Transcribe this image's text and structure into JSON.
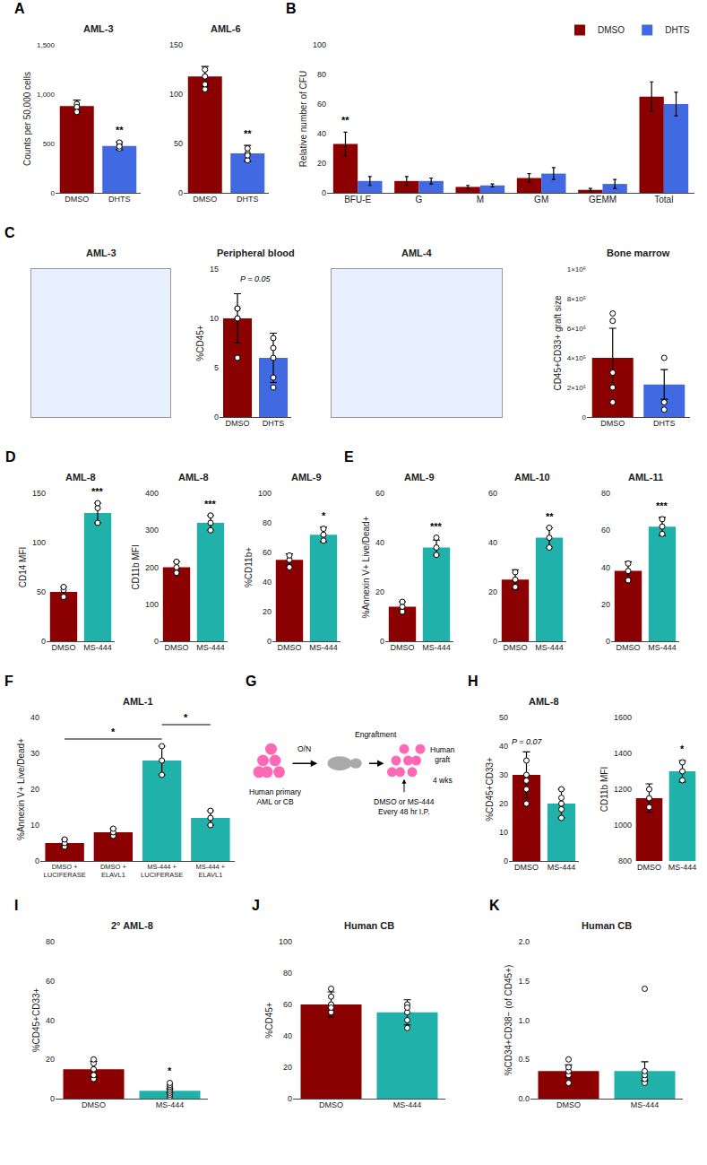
{
  "chart_data": [
    {
      "type": "bar",
      "panel": "A",
      "title": "AML-3",
      "ylabel": "Counts per 50,000 cells",
      "categories": [
        "DMSO",
        "DHTS"
      ],
      "values": [
        880,
        475
      ],
      "errors": [
        60,
        40
      ],
      "colors": [
        "#8B0000",
        "#4169E1"
      ],
      "dots": [
        [
          850,
          900,
          870,
          820
        ],
        [
          450,
          490,
          510,
          470
        ]
      ],
      "dot_color": "white",
      "dot_edge_color": "black",
      "ylim": [
        0,
        1500
      ],
      "yticks": [
        0,
        500,
        {
          "value": 1000,
          "label": "1,000"
        },
        {
          "value": 1500,
          "label": "1,500"
        }
      ],
      "grid": false,
      "annotations": [
        {
          "text": "**",
          "category": "DHTS"
        }
      ]
    },
    {
      "type": "bar",
      "title": "AML-6",
      "categories": [
        "DMSO",
        "DHTS"
      ],
      "values": [
        118,
        40
      ],
      "errors": [
        10,
        8
      ],
      "colors": [
        "#8B0000",
        "#4169E1"
      ],
      "dots": [
        [
          105,
          118,
          125,
          110
        ],
        [
          33,
          40,
          45,
          38
        ]
      ],
      "dot_color": "white",
      "dot_edge_color": "black",
      "ylim": [
        0,
        150
      ],
      "yticks": [
        0,
        50,
        100,
        150
      ],
      "grid": false,
      "annotations": [
        {
          "text": "**",
          "category": "DHTS"
        }
      ]
    },
    {
      "type": "bar",
      "panel": "B",
      "ylabel": "Relative number of CFU",
      "categories": [
        "BFU-E",
        "G",
        "M",
        "GM",
        "GEMM",
        "Total"
      ],
      "series": [
        {
          "name": "DMSO",
          "color": "#8B0000",
          "values": [
            33,
            8,
            4,
            10,
            2,
            65
          ],
          "errors": [
            8,
            3,
            1,
            3,
            1,
            10
          ]
        },
        {
          "name": "DHTS",
          "color": "#4169E1",
          "values": [
            8,
            8,
            5,
            13,
            6,
            60
          ],
          "errors": [
            3,
            2,
            1,
            4,
            3,
            8
          ]
        }
      ],
      "ylim": [
        0,
        100
      ],
      "yticks": [
        0,
        20,
        40,
        60,
        80,
        100
      ],
      "legend": "upper right",
      "grid": false,
      "annotations": [
        {
          "text": "**",
          "category": "BFU-E",
          "series": "DMSO"
        }
      ]
    },
    {
      "type": "blank",
      "panel": "C",
      "title": "AML-3",
      "color": "#E8F0FF",
      "tick_labels": false,
      "grid": false
    },
    {
      "type": "bar",
      "title": "Peripheral blood",
      "ylabel": "%CD45+",
      "categories": [
        "DMSO",
        "DHTS"
      ],
      "values": [
        10.0,
        6.0
      ],
      "errors": [
        2.5,
        2.5
      ],
      "colors": [
        "#8B0000",
        "#4169E1"
      ],
      "dots": [
        [
          10,
          11,
          6,
          10,
          11
        ],
        [
          3,
          4,
          7,
          8,
          6
        ]
      ],
      "dot_color": "white",
      "dot_edge_color": "black",
      "ylim": [
        0,
        15
      ],
      "yticks": [
        0,
        5,
        10,
        15
      ],
      "grid": false,
      "annotations": [
        {
          "text": "P = 0.05"
        }
      ]
    },
    {
      "type": "blank",
      "title": "AML-4",
      "color": "#E8F0FF",
      "tick_labels": false,
      "grid": false
    },
    {
      "type": "bar",
      "title": "Bone marrow",
      "ylabel": "CD45+CD33+ graft size",
      "categories": [
        "DMSO",
        "DHTS"
      ],
      "values": [
        400000,
        220000
      ],
      "errors": [
        200000,
        100000
      ],
      "colors": [
        "#8B0000",
        "#4169E1"
      ],
      "dots": [
        [
          700000,
          650000,
          300000,
          200000,
          100000
        ],
        [
          400000,
          100000,
          100000,
          50000
        ]
      ],
      "dot_color": "white",
      "dot_edge_color": "black",
      "ylim": [
        0,
        1000000
      ],
      "yticks": [
        0,
        {
          "value": 200000,
          "label": "2×10⁵"
        },
        {
          "value": 400000,
          "label": "4×10⁵"
        },
        {
          "value": 600000,
          "label": "6×10⁵"
        },
        {
          "value": 800000,
          "label": "8×10⁵"
        },
        {
          "value": 1000000,
          "label": "1×10⁶"
        }
      ],
      "grid": false
    },
    {
      "type": "bar",
      "panel": "D",
      "title": "AML-8",
      "ylabel": "CD14 MFI",
      "categories": [
        "DMSO",
        "MS-444"
      ],
      "values": [
        50,
        130
      ],
      "errors": [
        5,
        10
      ],
      "colors": [
        "#8B0000",
        "#20B2AA"
      ],
      "dots": [
        [
          45,
          52,
          55
        ],
        [
          120,
          135,
          140
        ]
      ],
      "dot_color": "white",
      "dot_edge_color": "black",
      "ylim": [
        0,
        150
      ],
      "yticks": [
        0,
        50,
        100,
        150
      ],
      "grid": false,
      "annotations": [
        {
          "text": "***",
          "category": "MS-444"
        }
      ]
    },
    {
      "type": "bar",
      "title": "AML-8",
      "ylabel": "CD11b MFI",
      "categories": [
        "DMSO",
        "MS-444"
      ],
      "values": [
        200,
        320
      ],
      "errors": [
        15,
        20
      ],
      "colors": [
        "#8B0000",
        "#20B2AA"
      ],
      "dots": [
        [
          185,
          200,
          215
        ],
        [
          300,
          320,
          340
        ]
      ],
      "dot_color": "white",
      "dot_edge_color": "black",
      "ylim": [
        0,
        400
      ],
      "yticks": [
        0,
        100,
        200,
        300,
        400
      ],
      "grid": false,
      "annotations": [
        {
          "text": "***",
          "category": "MS-444"
        }
      ]
    },
    {
      "type": "bar",
      "title": "AML-9",
      "ylabel": "%CD11b+",
      "categories": [
        "DMSO",
        "MS-444"
      ],
      "values": [
        55,
        72
      ],
      "errors": [
        4,
        5
      ],
      "colors": [
        "#8B0000",
        "#20B2AA"
      ],
      "dots": [
        [
          50,
          55,
          58
        ],
        [
          68,
          72,
          76
        ]
      ],
      "dot_color": "white",
      "dot_edge_color": "black",
      "ylim": [
        0,
        100
      ],
      "yticks": [
        0,
        20,
        40,
        60,
        80,
        100
      ],
      "grid": false,
      "annotations": [
        {
          "text": "*",
          "category": "MS-444"
        }
      ]
    },
    {
      "type": "bar",
      "panel": "E",
      "title": "AML-9",
      "ylabel": "%Annexin V+ Live/Dead+",
      "categories": [
        "DMSO",
        "MS-444"
      ],
      "values": [
        14,
        38
      ],
      "errors": [
        2,
        3
      ],
      "colors": [
        "#8B0000",
        "#20B2AA"
      ],
      "dots": [
        [
          12,
          14,
          16
        ],
        [
          35,
          38,
          42
        ]
      ],
      "dot_color": "white",
      "dot_edge_color": "black",
      "ylim": [
        0,
        60
      ],
      "yticks": [
        0,
        20,
        40,
        60
      ],
      "grid": false,
      "annotations": [
        {
          "text": "***",
          "category": "MS-444"
        }
      ]
    },
    {
      "type": "bar",
      "title": "AML-10",
      "categories": [
        "DMSO",
        "MS-444"
      ],
      "values": [
        25,
        42
      ],
      "errors": [
        4,
        4
      ],
      "colors": [
        "#8B0000",
        "#20B2AA"
      ],
      "dots": [
        [
          22,
          25,
          28
        ],
        [
          38,
          42,
          46
        ]
      ],
      "dot_color": "white",
      "dot_edge_color": "black",
      "ylim": [
        0,
        60
      ],
      "yticks": [
        0,
        20,
        40,
        60
      ],
      "grid": false,
      "annotations": [
        {
          "text": "**",
          "category": "MS-444"
        }
      ]
    },
    {
      "type": "bar",
      "title": "AML-11",
      "categories": [
        "DMSO",
        "MS-444"
      ],
      "values": [
        38,
        62
      ],
      "errors": [
        5,
        5
      ],
      "colors": [
        "#8B0000",
        "#20B2AA"
      ],
      "dots": [
        [
          33,
          38,
          42
        ],
        [
          58,
          62,
          66
        ]
      ],
      "dot_color": "white",
      "dot_edge_color": "black",
      "ylim": [
        0,
        80
      ],
      "yticks": [
        0,
        20,
        40,
        60,
        80
      ],
      "grid": false,
      "annotations": [
        {
          "text": "***",
          "category": "MS-444"
        }
      ]
    },
    {
      "type": "bar",
      "panel": "F",
      "title": "AML-1",
      "ylabel": "%Annexin V+ Live/Dead+",
      "categories": [
        "DMSO +\nLUCIFERASE",
        "DMSO +\nELAVL1",
        "MS-444 +\nLUCIFERASE",
        "MS-444 +\nELAVL1"
      ],
      "values": [
        5,
        8,
        28,
        12
      ],
      "errors": [
        1,
        1,
        4,
        2
      ],
      "colors": [
        "#8B0000",
        "#8B0000",
        "#20B2AA",
        "#20B2AA"
      ],
      "dots": [
        [
          4,
          5,
          6
        ],
        [
          7,
          8,
          9
        ],
        [
          24,
          28,
          32
        ],
        [
          10,
          12,
          14
        ]
      ],
      "dot_color": "white",
      "dot_edge_color": "black",
      "ylim": [
        0,
        40
      ],
      "yticks": [
        0,
        10,
        20,
        30,
        40
      ],
      "grid": false,
      "annotations": [
        {
          "text": "*",
          "from": "DMSO +\nLUCIFERASE",
          "to": "MS-444 +\nLUCIFERASE"
        },
        {
          "text": "*",
          "from": "MS-444 +\nLUCIFERASE",
          "to": "MS-444 +\nELAVL1"
        }
      ]
    },
    {
      "type": "schematic",
      "panel": "G",
      "texts": {
        "cells": "Human primary\nAML or CB",
        "overnight": "O/N",
        "engraftment": "Engraftment",
        "treatment": "DMSO or MS-444\nEvery 48 hr I.P.",
        "duration": "4 wks",
        "graft": "Human\ngraft"
      },
      "cell_color": "#FF69B4",
      "mouse_color": "#AAAAAA"
    },
    {
      "type": "bar",
      "panel": "H",
      "title": "AML-8",
      "ylabel": "%CD45+CD33+",
      "categories": [
        "DMSO",
        "MS-444"
      ],
      "values": [
        30,
        20
      ],
      "errors": [
        8,
        5
      ],
      "colors": [
        "#8B0000",
        "#20B2AA"
      ],
      "dots": [
        [
          25,
          30,
          35,
          20,
          28
        ],
        [
          15,
          20,
          22,
          18,
          25
        ]
      ],
      "dot_color": "white",
      "dot_edge_color": "black",
      "ylim": [
        0,
        50
      ],
      "yticks": [
        0,
        10,
        20,
        30,
        40,
        50
      ],
      "grid": false,
      "annotations": [
        {
          "text": "P = 0.07",
          "category": "DMSO"
        }
      ]
    },
    {
      "type": "bar",
      "ylabel": "CD11b MFI",
      "categories": [
        "DMSO",
        "MS-444"
      ],
      "values": [
        1150,
        1300
      ],
      "errors": [
        80,
        60
      ],
      "colors": [
        "#8B0000",
        "#20B2AA"
      ],
      "dots": [
        [
          1100,
          1150,
          1200
        ],
        [
          1250,
          1300,
          1350
        ]
      ],
      "dot_color": "white",
      "dot_edge_color": "black",
      "ylim": [
        800,
        1600
      ],
      "yticks": [
        800,
        1000,
        1200,
        1400,
        1600
      ],
      "grid": false,
      "annotations": [
        {
          "text": "*",
          "category": "MS-444"
        }
      ]
    },
    {
      "type": "bar",
      "panel": "I",
      "title": "2° AML-8",
      "ylabel": "%CD45+CD33+",
      "categories": [
        "DMSO",
        "MS-444"
      ],
      "values": [
        15,
        4
      ],
      "errors": [
        4,
        1
      ],
      "colors": [
        "#8B0000",
        "#20B2AA"
      ],
      "dots": [
        [
          10,
          15,
          18,
          20,
          12
        ],
        [
          1,
          2,
          3,
          4,
          5,
          6,
          7,
          8
        ]
      ],
      "dot_color": "white",
      "dot_edge_color": "black",
      "ylim": [
        0,
        80
      ],
      "yticks": [
        0,
        20,
        40,
        60,
        80
      ],
      "grid": false,
      "annotations": [
        {
          "text": "*",
          "category": "MS-444"
        }
      ]
    },
    {
      "type": "bar",
      "panel": "J",
      "title": "Human CB",
      "ylabel": "%CD45+",
      "categories": [
        "DMSO",
        "MS-444"
      ],
      "values": [
        60,
        55
      ],
      "errors": [
        8,
        8
      ],
      "colors": [
        "#8B0000",
        "#20B2AA"
      ],
      "dots": [
        [
          55,
          60,
          65,
          70,
          58
        ],
        [
          45,
          50,
          55,
          60,
          58
        ]
      ],
      "dot_color": "white",
      "dot_edge_color": "black",
      "ylim": [
        0,
        100
      ],
      "yticks": [
        0,
        20,
        40,
        60,
        80,
        100
      ],
      "grid": false
    },
    {
      "type": "bar",
      "panel": "K",
      "title": "Human CB",
      "ylabel": "%CD34+CD38− (of CD45+)",
      "categories": [
        "DMSO",
        "MS-444"
      ],
      "values": [
        0.35,
        0.35
      ],
      "errors": [
        0.08,
        0.12
      ],
      "colors": [
        "#8B0000",
        "#20B2AA"
      ],
      "dots": [
        [
          0.2,
          0.3,
          0.35,
          0.4,
          0.5
        ],
        [
          0.2,
          0.25,
          0.3,
          0.35,
          1.4
        ]
      ],
      "dot_color": "white",
      "dot_edge_color": "black",
      "ylim": [
        0,
        2.0
      ],
      "yticks": [
        {
          "value": 0,
          "label": "0.0"
        },
        0.5,
        {
          "value": 1.0,
          "label": "1.0"
        },
        1.5,
        {
          "value": 2.0,
          "label": "2.0"
        }
      ],
      "grid": false
    }
  ]
}
